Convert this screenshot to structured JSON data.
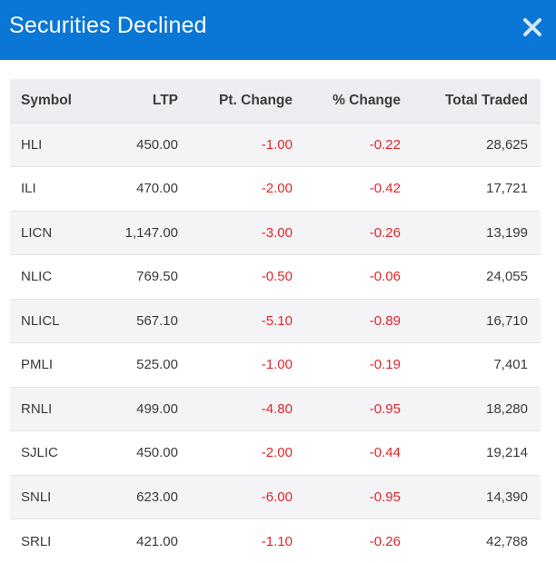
{
  "modal": {
    "title": "Securities Declined",
    "close_icon": "close-icon",
    "header_color": "#0a76d6",
    "negative_color": "#e0262c"
  },
  "table": {
    "headers": {
      "symbol": "Symbol",
      "ltp": "LTP",
      "pt_change": "Pt. Change",
      "pct_change": "% Change",
      "total_traded": "Total Traded"
    },
    "rows": [
      {
        "symbol": "HLI",
        "ltp": "450.00",
        "pt_change": "-1.00",
        "pct_change": "-0.22",
        "total_traded": "28,625"
      },
      {
        "symbol": "ILI",
        "ltp": "470.00",
        "pt_change": "-2.00",
        "pct_change": "-0.42",
        "total_traded": "17,721"
      },
      {
        "symbol": "LICN",
        "ltp": "1,147.00",
        "pt_change": "-3.00",
        "pct_change": "-0.26",
        "total_traded": "13,199"
      },
      {
        "symbol": "NLIC",
        "ltp": "769.50",
        "pt_change": "-0.50",
        "pct_change": "-0.06",
        "total_traded": "24,055"
      },
      {
        "symbol": "NLICL",
        "ltp": "567.10",
        "pt_change": "-5.10",
        "pct_change": "-0.89",
        "total_traded": "16,710"
      },
      {
        "symbol": "PMLI",
        "ltp": "525.00",
        "pt_change": "-1.00",
        "pct_change": "-0.19",
        "total_traded": "7,401"
      },
      {
        "symbol": "RNLI",
        "ltp": "499.00",
        "pt_change": "-4.80",
        "pct_change": "-0.95",
        "total_traded": "18,280"
      },
      {
        "symbol": "SJLIC",
        "ltp": "450.00",
        "pt_change": "-2.00",
        "pct_change": "-0.44",
        "total_traded": "19,214"
      },
      {
        "symbol": "SNLI",
        "ltp": "623.00",
        "pt_change": "-6.00",
        "pct_change": "-0.95",
        "total_traded": "14,390"
      },
      {
        "symbol": "SRLI",
        "ltp": "421.00",
        "pt_change": "-1.10",
        "pct_change": "-0.26",
        "total_traded": "42,788"
      }
    ]
  }
}
